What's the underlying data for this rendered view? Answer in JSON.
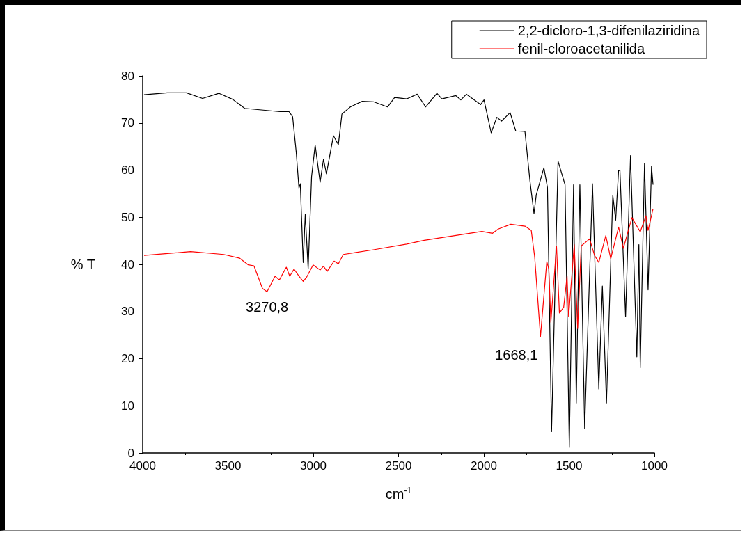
{
  "chart_data": {
    "type": "line",
    "xlabel": "cm$^{-1}$",
    "ylabel": "% T",
    "xlim": [
      4000,
      1000
    ],
    "xticks": [
      4000,
      3500,
      3000,
      2500,
      2000,
      1500,
      1000
    ],
    "ylim": [
      0,
      80
    ],
    "yticks": [
      0,
      10,
      20,
      30,
      40,
      50,
      60,
      70,
      80
    ],
    "legend": "top right",
    "grid": false,
    "annotations": [
      {
        "text": "3270,8",
        "x": 3271,
        "y": 34.2
      },
      {
        "text": "1668,1",
        "x": 1668,
        "y": 24.7
      }
    ],
    "series": [
      {
        "name": "2,2-dicloro-1,3-difenilaziridina",
        "color": "#000000",
        "x": [
          3992,
          3856,
          3744,
          3649,
          3554,
          3472,
          3402,
          3195,
          3142,
          3121,
          3100,
          3084,
          3076,
          3059,
          3047,
          3030,
          3010,
          2989,
          2960,
          2940,
          2923,
          2882,
          2853,
          2832,
          2783,
          2713,
          2647,
          2564,
          2523,
          2453,
          2391,
          2341,
          2275,
          2246,
          2164,
          2135,
          2102,
          2019,
          1999,
          1957,
          1924,
          1896,
          1846,
          1813,
          1759,
          1730,
          1706,
          1693,
          1648,
          1627,
          1603,
          1565,
          1524,
          1499,
          1474,
          1458,
          1437,
          1409,
          1363,
          1326,
          1305,
          1281,
          1244,
          1227,
          1210,
          1202,
          1169,
          1140,
          1103,
          1091,
          1083,
          1058,
          1037,
          1017,
          1008
        ],
        "values": [
          76.0,
          76.4,
          76.4,
          75.2,
          76.3,
          75.0,
          73.1,
          72.4,
          72.4,
          71.3,
          63.8,
          56.2,
          57.1,
          40.4,
          50.6,
          39.1,
          58.6,
          65.3,
          57.4,
          62.3,
          59.2,
          67.3,
          65.4,
          71.9,
          73.4,
          74.6,
          74.5,
          73.4,
          75.4,
          75.1,
          76.1,
          73.4,
          76.3,
          75.1,
          75.8,
          74.9,
          76.1,
          73.9,
          74.9,
          67.9,
          71.2,
          70.4,
          72.2,
          68.3,
          68.2,
          57.8,
          50.8,
          54.7,
          60.5,
          56.3,
          4.5,
          61.9,
          56.9,
          1.2,
          56.9,
          10.6,
          56.9,
          5.2,
          57.1,
          13.6,
          35.4,
          10.6,
          54.7,
          49.4,
          59.9,
          59.9,
          28.9,
          63.1,
          20.4,
          44.2,
          18.1,
          61.4,
          34.6,
          60.8,
          56.9
        ]
      },
      {
        "name": "fenil-cloroacetanilida",
        "color": "#ff0000",
        "x": [
          3992,
          3719,
          3525,
          3431,
          3381,
          3348,
          3298,
          3271,
          3224,
          3199,
          3158,
          3138,
          3113,
          3084,
          3059,
          3039,
          3001,
          2960,
          2940,
          2919,
          2878,
          2853,
          2824,
          2647,
          2453,
          2349,
          2011,
          1949,
          1916,
          1842,
          1759,
          1722,
          1702,
          1668,
          1631,
          1619,
          1607,
          1574,
          1557,
          1532,
          1512,
          1503,
          1470,
          1450,
          1429,
          1380,
          1351,
          1326,
          1285,
          1256,
          1210,
          1182,
          1132,
          1083,
          1050,
          1037,
          1008
        ],
        "values": [
          41.9,
          42.7,
          42.1,
          41.3,
          39.9,
          39.7,
          34.9,
          34.2,
          37.5,
          36.7,
          39.4,
          37.5,
          39.0,
          37.5,
          36.4,
          37.3,
          39.9,
          38.8,
          39.6,
          38.5,
          40.7,
          40.1,
          42.1,
          43.1,
          44.3,
          45.1,
          47.0,
          46.6,
          47.5,
          48.5,
          48.1,
          47.2,
          41.6,
          24.7,
          40.6,
          39.0,
          27.7,
          43.9,
          29.7,
          30.9,
          37.5,
          28.9,
          44.2,
          26.4,
          43.9,
          45.4,
          41.9,
          40.4,
          46.1,
          41.2,
          47.9,
          43.4,
          49.9,
          46.9,
          50.3,
          47.2,
          51.8
        ]
      }
    ]
  }
}
